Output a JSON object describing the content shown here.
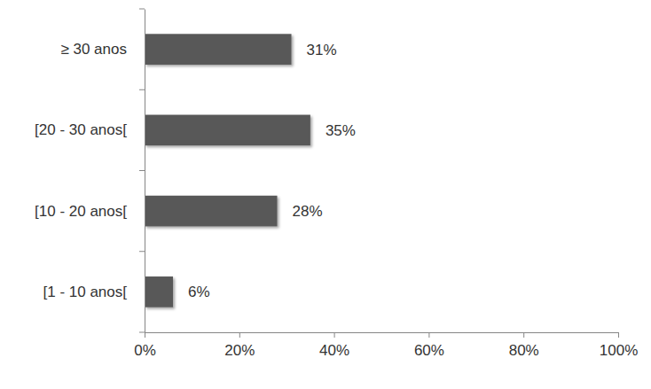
{
  "chart_data": {
    "type": "bar",
    "orientation": "horizontal",
    "categories": [
      "≥ 30 anos",
      "[20 - 30 anos[",
      "[10 - 20 anos[",
      "[1 - 10 anos["
    ],
    "values": [
      31,
      35,
      28,
      6
    ],
    "value_labels": [
      "31%",
      "35%",
      "28%",
      "6%"
    ],
    "data_labels": true,
    "color": "#595959",
    "xlim": [
      0,
      100
    ],
    "xticks": [
      {
        "value": 0,
        "label": "0%"
      },
      {
        "value": 20,
        "label": "20%"
      },
      {
        "value": 40,
        "label": "40%"
      },
      {
        "value": 60,
        "label": "60%"
      },
      {
        "value": 80,
        "label": "80%"
      },
      {
        "value": 100,
        "label": "100%"
      }
    ],
    "grid": false
  }
}
